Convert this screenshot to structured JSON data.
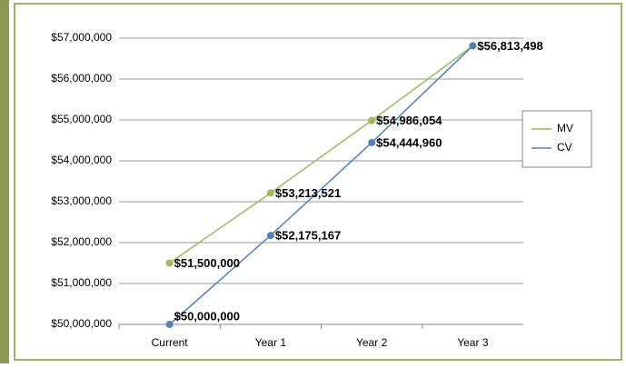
{
  "chart_data": {
    "type": "line",
    "categories": [
      "Current",
      "Year 1",
      "Year 2",
      "Year 3"
    ],
    "series": [
      {
        "name": "MV",
        "color": "#9bbb59",
        "values": [
          51500000,
          53213521,
          54986054,
          56813498
        ],
        "value_labels": [
          "$51,500,000",
          "$53,213,521",
          "$54,986,054",
          "$56,813,498"
        ]
      },
      {
        "name": "CV",
        "color": "#4f81bd",
        "values": [
          50000000,
          52175167,
          54444960,
          56813498
        ],
        "value_labels": [
          "$50,000,000",
          "$52,175,167",
          "$54,444,960",
          null
        ]
      }
    ],
    "ylim": [
      50000000,
      57000000
    ],
    "yticks": [
      {
        "value": 50000000,
        "label": "$50,000,000"
      },
      {
        "value": 51000000,
        "label": "$51,000,000"
      },
      {
        "value": 52000000,
        "label": "$52,000,000"
      },
      {
        "value": 53000000,
        "label": "$53,000,000"
      },
      {
        "value": 54000000,
        "label": "$54,000,000"
      },
      {
        "value": 55000000,
        "label": "$55,000,000"
      },
      {
        "value": 56000000,
        "label": "$56,000,000"
      },
      {
        "value": 57000000,
        "label": "$57,000,000"
      }
    ],
    "grid": true,
    "legend": "right"
  }
}
